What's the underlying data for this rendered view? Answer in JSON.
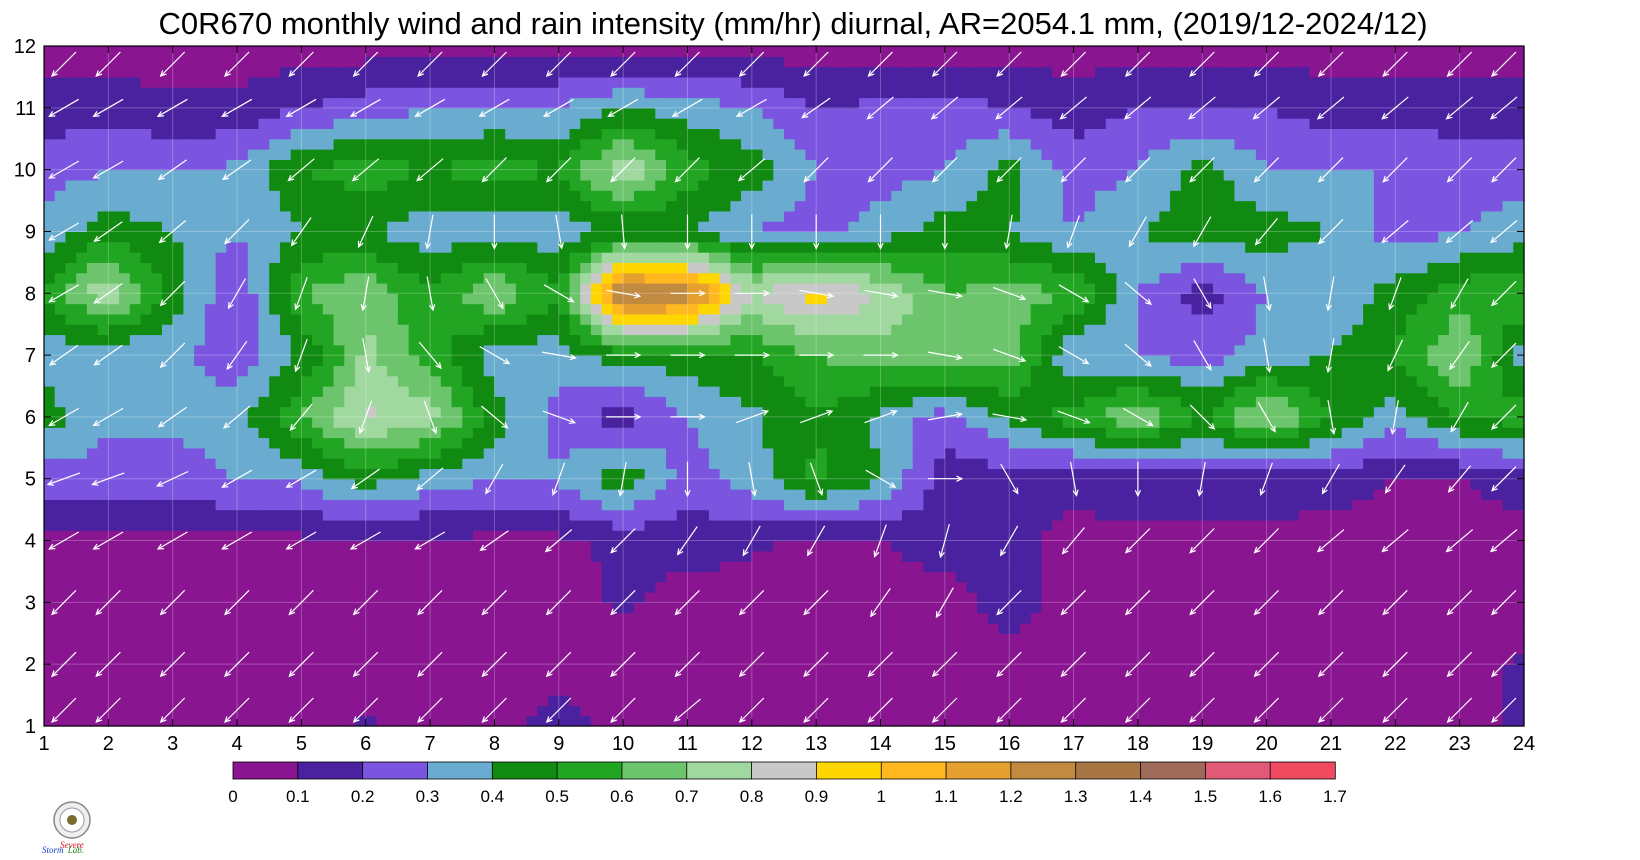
{
  "chart_data": {
    "type": "heatmap",
    "title": "C0R670 monthly wind and rain intensity (mm/hr) diurnal, AR=2054.1 mm, (2019/12-2024/12)",
    "xlabel": "",
    "ylabel": "",
    "xlim": [
      1,
      24
    ],
    "ylim": [
      1,
      12
    ],
    "x_ticks": [
      1,
      2,
      3,
      4,
      5,
      6,
      7,
      8,
      9,
      10,
      11,
      12,
      13,
      14,
      15,
      16,
      17,
      18,
      19,
      20,
      21,
      22,
      23,
      24
    ],
    "y_ticks": [
      1,
      2,
      3,
      4,
      5,
      6,
      7,
      8,
      9,
      10,
      11,
      12
    ],
    "grid": true,
    "colorbar_levels": [
      0,
      0.1,
      0.2,
      0.3,
      0.4,
      0.5,
      0.6,
      0.7,
      0.8,
      0.9,
      1,
      1.1,
      1.2,
      1.3,
      1.4,
      1.5,
      1.6,
      1.7
    ],
    "colorbar_labels": [
      "0",
      "0.1",
      "0.2",
      "0.3",
      "0.4",
      "0.5",
      "0.6",
      "0.7",
      "0.8",
      "0.9",
      "1",
      "1.1",
      "1.2",
      "1.3",
      "1.4",
      "1.5",
      "1.6",
      "1.7"
    ],
    "colors": [
      "#8a1590",
      "#4a22a0",
      "#7b55e0",
      "#6aacd0",
      "#108a10",
      "#22a522",
      "#6cc46c",
      "#a0d8a0",
      "#c8c8c8",
      "#ffd700",
      "#ffb820",
      "#e6a030",
      "#c08a40",
      "#a87545",
      "#a06a5a",
      "#e05a78",
      "#f04a60",
      "#d02838"
    ],
    "z": [
      [
        0.05,
        0.05,
        0.05,
        0.05,
        0.05,
        0.12,
        0.05,
        0.05,
        0.15,
        0.05,
        0.05,
        0.05,
        0.05,
        0.05,
        0.05,
        0.05,
        0.05,
        0.05,
        0.05,
        0.05,
        0.05,
        0.05,
        0.05,
        0.12
      ],
      [
        0.05,
        0.05,
        0.05,
        0.05,
        0.05,
        0.05,
        0.05,
        0.05,
        0.05,
        0.05,
        0.05,
        0.05,
        0.05,
        0.05,
        0.05,
        0.05,
        0.05,
        0.05,
        0.05,
        0.05,
        0.05,
        0.05,
        0.05,
        0.12
      ],
      [
        0.05,
        0.05,
        0.05,
        0.05,
        0.05,
        0.05,
        0.05,
        0.05,
        0.05,
        0.12,
        0.05,
        0.05,
        0.05,
        0.05,
        0.05,
        0.15,
        0.05,
        0.05,
        0.05,
        0.05,
        0.05,
        0.05,
        0.05,
        0.05
      ],
      [
        0.08,
        0.08,
        0.08,
        0.08,
        0.08,
        0.08,
        0.08,
        0.08,
        0.08,
        0.12,
        0.15,
        0.12,
        0.08,
        0.1,
        0.15,
        0.12,
        0.08,
        0.08,
        0.08,
        0.08,
        0.05,
        0.05,
        0.05,
        0.05
      ],
      [
        0.25,
        0.25,
        0.25,
        0.3,
        0.32,
        0.45,
        0.35,
        0.3,
        0.32,
        0.48,
        0.25,
        0.35,
        0.52,
        0.4,
        0.15,
        0.15,
        0.12,
        0.15,
        0.15,
        0.15,
        0.15,
        0.1,
        0.1,
        0.15
      ],
      [
        0.45,
        0.32,
        0.32,
        0.35,
        0.6,
        0.82,
        0.75,
        0.45,
        0.25,
        0.15,
        0.3,
        0.38,
        0.5,
        0.38,
        0.25,
        0.42,
        0.55,
        0.7,
        0.5,
        0.75,
        0.5,
        0.35,
        0.5,
        0.55
      ],
      [
        0.35,
        0.3,
        0.32,
        0.25,
        0.4,
        0.72,
        0.55,
        0.35,
        0.35,
        0.45,
        0.45,
        0.5,
        0.6,
        0.65,
        0.7,
        0.65,
        0.3,
        0.3,
        0.25,
        0.35,
        0.4,
        0.5,
        0.7,
        0.35
      ],
      [
        0.5,
        0.8,
        0.45,
        0.2,
        0.6,
        0.7,
        0.5,
        0.7,
        0.5,
        1.35,
        1.3,
        0.8,
        0.95,
        0.8,
        0.6,
        0.65,
        0.6,
        0.3,
        0.15,
        0.3,
        0.3,
        0.45,
        0.55,
        0.6
      ],
      [
        0.35,
        0.45,
        0.4,
        0.3,
        0.4,
        0.4,
        0.35,
        0.35,
        0.35,
        0.4,
        0.4,
        0.3,
        0.25,
        0.35,
        0.45,
        0.4,
        0.3,
        0.4,
        0.45,
        0.45,
        0.4,
        0.25,
        0.3,
        0.35
      ],
      [
        0.25,
        0.3,
        0.3,
        0.32,
        0.5,
        0.55,
        0.5,
        0.55,
        0.5,
        0.8,
        0.55,
        0.45,
        0.3,
        0.25,
        0.3,
        0.45,
        0.25,
        0.3,
        0.45,
        0.3,
        0.3,
        0.3,
        0.25,
        0.25
      ],
      [
        0.15,
        0.15,
        0.12,
        0.12,
        0.2,
        0.25,
        0.3,
        0.3,
        0.3,
        0.4,
        0.35,
        0.3,
        0.2,
        0.22,
        0.25,
        0.2,
        0.15,
        0.2,
        0.2,
        0.2,
        0.15,
        0.15,
        0.15,
        0.15
      ],
      [
        0.05,
        0.05,
        0.05,
        0.05,
        0.05,
        0.05,
        0.05,
        0.05,
        0.05,
        0.05,
        0.05,
        0.05,
        0.05,
        0.05,
        0.05,
        0.05,
        0.05,
        0.05,
        0.05,
        0.05,
        0.05,
        0.05,
        0.05,
        0.05
      ]
    ],
    "wind_direction": [
      [
        225,
        225,
        225,
        225,
        225,
        225,
        225,
        225,
        225,
        225,
        230,
        225,
        225,
        225,
        225,
        225,
        225,
        225,
        225,
        225,
        225,
        225,
        225,
        225
      ],
      [
        225,
        225,
        225,
        225,
        225,
        225,
        225,
        225,
        225,
        225,
        225,
        225,
        225,
        225,
        225,
        225,
        225,
        225,
        225,
        225,
        225,
        225,
        225,
        225
      ],
      [
        225,
        225,
        225,
        225,
        225,
        225,
        225,
        225,
        225,
        225,
        225,
        225,
        225,
        215,
        210,
        225,
        225,
        225,
        225,
        225,
        225,
        225,
        225,
        225
      ],
      [
        240,
        240,
        240,
        240,
        240,
        240,
        240,
        235,
        230,
        225,
        215,
        210,
        210,
        200,
        195,
        210,
        220,
        225,
        225,
        225,
        230,
        230,
        230,
        230
      ],
      [
        250,
        250,
        245,
        240,
        240,
        235,
        230,
        210,
        200,
        190,
        180,
        170,
        160,
        120,
        90,
        150,
        170,
        180,
        190,
        200,
        210,
        215,
        220,
        225
      ],
      [
        240,
        240,
        235,
        230,
        220,
        200,
        160,
        130,
        110,
        90,
        90,
        70,
        70,
        70,
        80,
        100,
        110,
        120,
        135,
        150,
        170,
        190,
        210,
        225
      ],
      [
        235,
        235,
        225,
        215,
        200,
        170,
        140,
        120,
        100,
        90,
        90,
        90,
        90,
        90,
        100,
        110,
        120,
        130,
        150,
        170,
        190,
        205,
        215,
        225
      ],
      [
        240,
        235,
        225,
        210,
        200,
        190,
        170,
        150,
        120,
        100,
        90,
        90,
        100,
        100,
        100,
        110,
        120,
        130,
        150,
        170,
        190,
        200,
        210,
        225
      ],
      [
        240,
        235,
        230,
        225,
        215,
        205,
        190,
        180,
        170,
        175,
        180,
        180,
        180,
        180,
        180,
        190,
        200,
        210,
        210,
        220,
        225,
        230,
        230,
        230
      ],
      [
        240,
        240,
        235,
        235,
        230,
        230,
        230,
        225,
        225,
        225,
        225,
        230,
        225,
        225,
        225,
        225,
        225,
        225,
        225,
        225,
        225,
        225,
        225,
        225
      ],
      [
        240,
        240,
        240,
        240,
        240,
        240,
        240,
        240,
        240,
        240,
        240,
        240,
        235,
        230,
        230,
        230,
        230,
        230,
        230,
        230,
        230,
        230,
        230,
        230
      ],
      [
        225,
        225,
        225,
        225,
        225,
        225,
        225,
        225,
        225,
        225,
        225,
        225,
        225,
        225,
        225,
        225,
        225,
        225,
        225,
        225,
        225,
        225,
        225,
        225
      ]
    ]
  },
  "logo": {
    "text_a": "Severe",
    "text_b": "Storm",
    "text_c": "Lab."
  }
}
